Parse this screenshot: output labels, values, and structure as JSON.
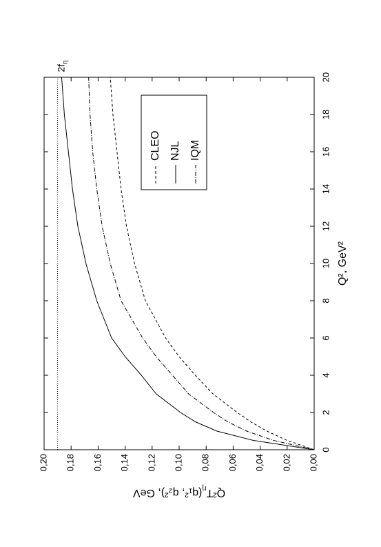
{
  "chart_data": {
    "type": "line",
    "x_label": "Q², GeV²",
    "y_label_parts": [
      "Q²T",
      "η",
      "(q₁², q₂²), GeV"
    ],
    "x": [
      0,
      0.5,
      1,
      1.5,
      2,
      3,
      4,
      5,
      6,
      8,
      10,
      12,
      14,
      16,
      18,
      20
    ],
    "series": [
      {
        "name": "CLEO",
        "color": "#000000",
        "dash": "dashed",
        "values": [
          0,
          0.02,
          0.035,
          0.047,
          0.057,
          0.075,
          0.088,
          0.1,
          0.11,
          0.125,
          0.133,
          0.139,
          0.143,
          0.146,
          0.149,
          0.151
        ]
      },
      {
        "name": "NJL",
        "color": "#000000",
        "dash": "solid",
        "values": [
          0,
          0.045,
          0.072,
          0.088,
          0.099,
          0.117,
          0.128,
          0.14,
          0.15,
          0.161,
          0.169,
          0.175,
          0.179,
          0.182,
          0.185,
          0.187
        ]
      },
      {
        "name": "IQM",
        "color": "#000000",
        "dash": "dashdot",
        "values": [
          0,
          0.03,
          0.05,
          0.064,
          0.0745,
          0.093,
          0.105,
          0.117,
          0.127,
          0.143,
          0.151,
          0.157,
          0.161,
          0.164,
          0.166,
          0.167
        ]
      }
    ],
    "reference_line": {
      "value": 0.19,
      "label": "2f",
      "label_sub": "η",
      "dash": "dotted"
    },
    "xlim": [
      0,
      20
    ],
    "xticks": [
      0,
      2,
      4,
      6,
      8,
      10,
      12,
      14,
      16,
      18,
      20
    ],
    "ylim": [
      0,
      0.2
    ],
    "yticks": [
      {
        "value": 0,
        "label": "0,00"
      },
      {
        "value": 0.02,
        "label": "0,02"
      },
      {
        "value": 0.04,
        "label": "0,04"
      },
      {
        "value": 0.06,
        "label": "0,06"
      },
      {
        "value": 0.08,
        "label": "0,08"
      },
      {
        "value": 0.1,
        "label": "0,10"
      },
      {
        "value": 0.12,
        "label": "0,12"
      },
      {
        "value": 0.14,
        "label": "0,14"
      },
      {
        "value": 0.16,
        "label": "0,16"
      },
      {
        "value": 0.18,
        "label": "0,18"
      },
      {
        "value": 0.2,
        "label": "0,20"
      }
    ],
    "rotation": -90,
    "grid": false
  }
}
